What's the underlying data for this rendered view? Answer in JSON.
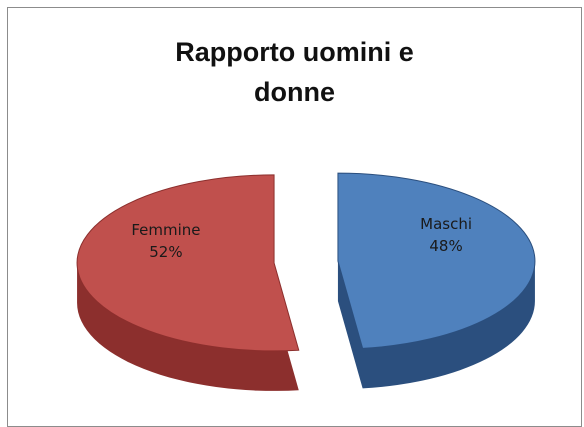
{
  "chart_data": {
    "type": "pie",
    "title_lines": [
      "Rapporto uomini e",
      "donne"
    ],
    "slices": [
      {
        "name": "Maschi",
        "value": 48,
        "label": "48%",
        "color": "#4f81bd",
        "side_color": "#2b4f7e"
      },
      {
        "name": "Femmine",
        "value": 52,
        "label": "52%",
        "color": "#c0504d",
        "side_color": "#8c2f2d"
      }
    ],
    "exploded": true,
    "three_d": true,
    "legend": "none"
  }
}
